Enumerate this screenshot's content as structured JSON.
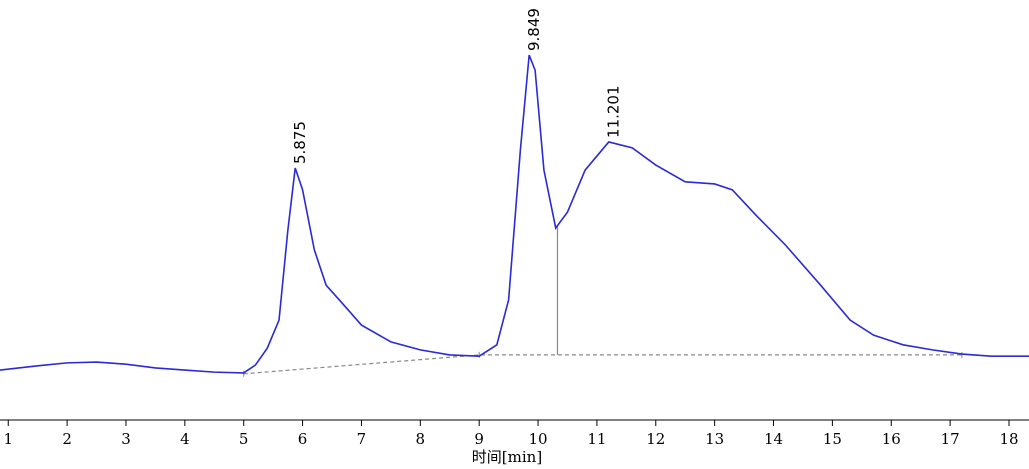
{
  "chart_data": {
    "type": "line",
    "x_label": "时间[min]",
    "x": [
      0.86,
      1.5,
      2.0,
      2.5,
      3.0,
      3.5,
      4.0,
      4.5,
      5.0,
      5.2,
      5.4,
      5.6,
      5.75,
      5.875,
      6.0,
      6.2,
      6.4,
      6.7,
      7.0,
      7.5,
      8.0,
      8.5,
      9.0,
      9.3,
      9.5,
      9.7,
      9.849,
      9.95,
      10.1,
      10.3,
      10.5,
      10.8,
      11.201,
      11.6,
      12.0,
      12.5,
      13.0,
      13.3,
      13.7,
      14.2,
      14.8,
      15.3,
      15.7,
      16.2,
      16.7,
      17.2,
      17.7,
      18.34
    ],
    "series": [
      {
        "color": "#2a2ad6",
        "values": [
          11.9,
          12.9,
          13.6,
          13.8,
          13.3,
          12.4,
          11.9,
          11.4,
          11.2,
          13.1,
          17.1,
          23.8,
          45.2,
          60.0,
          54.8,
          40.5,
          32.1,
          27.4,
          22.6,
          18.6,
          16.7,
          15.5,
          15.2,
          17.9,
          28.6,
          64.3,
          86.9,
          83.3,
          59.5,
          45.7,
          49.5,
          59.5,
          66.2,
          64.8,
          60.7,
          56.7,
          56.2,
          54.8,
          48.8,
          41.7,
          32.1,
          23.8,
          20.2,
          17.9,
          16.7,
          15.7,
          15.2,
          15.2
        ]
      }
    ],
    "peaks": [
      5.875,
      9.849,
      11.201
    ],
    "baseline": {
      "x": [
        5.0,
        9.0,
        17.2
      ],
      "values": [
        11.0,
        15.5,
        15.5
      ],
      "color": "#888888"
    },
    "split_x": [
      10.33
    ],
    "xlim": [
      0.86,
      18.34
    ],
    "ylim": [
      0,
      100
    ],
    "xticks": [
      1,
      2,
      3,
      4,
      5,
      6,
      7,
      8,
      9,
      10,
      11,
      12,
      13,
      14,
      15,
      16,
      17,
      18
    ]
  }
}
